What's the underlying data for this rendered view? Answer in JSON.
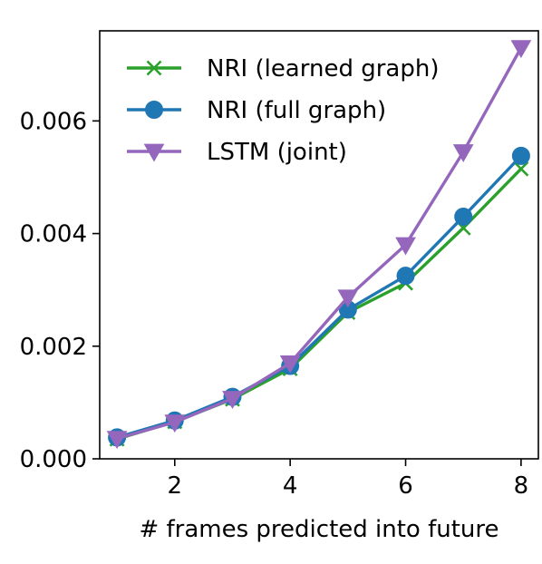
{
  "chart_data": {
    "type": "line",
    "xlabel": "# frames predicted into future",
    "ylabel": "",
    "xlim": [
      0.7,
      8.3
    ],
    "ylim": [
      0.0,
      0.0076
    ],
    "xticks": [
      2,
      4,
      6,
      8
    ],
    "xtick_labels": [
      "2",
      "4",
      "6",
      "8"
    ],
    "yticks": [
      0.0,
      0.002,
      0.004,
      0.006
    ],
    "ytick_labels": [
      "0.000",
      "0.002",
      "0.004",
      "0.006"
    ],
    "legend_position": "upper-left",
    "x": [
      1,
      2,
      3,
      4,
      5,
      6,
      7,
      8
    ],
    "series": [
      {
        "name": "NRI (learned graph)",
        "color": "#2ca02c",
        "marker": "x",
        "values": [
          0.00035,
          0.00066,
          0.00106,
          0.0016,
          0.0026,
          0.00312,
          0.0041,
          0.00515
        ]
      },
      {
        "name": "NRI (full graph)",
        "color": "#1f77b4",
        "marker": "circle",
        "values": [
          0.00038,
          0.00068,
          0.0011,
          0.00165,
          0.00265,
          0.00325,
          0.0043,
          0.00538
        ]
      },
      {
        "name": "LSTM (joint)",
        "color": "#9467bd",
        "marker": "triangle-down",
        "values": [
          0.00036,
          0.00065,
          0.00107,
          0.0017,
          0.00287,
          0.0038,
          0.00545,
          0.0073
        ]
      }
    ]
  }
}
